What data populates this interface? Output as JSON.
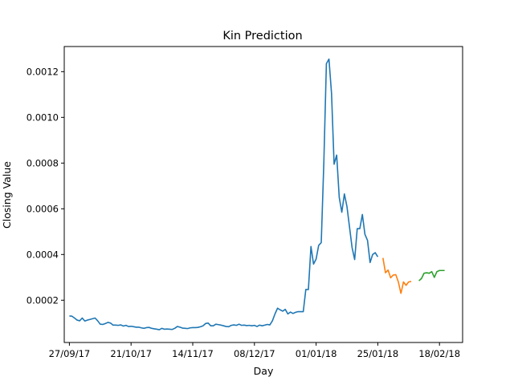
{
  "chart_data": {
    "type": "line",
    "title": "Kin Prediction",
    "xlabel": "Day",
    "ylabel": "Closing Value",
    "x_axis": {
      "unit": "date",
      "tick_dates": [
        "2017-09-27",
        "2017-10-21",
        "2017-11-14",
        "2017-12-08",
        "2018-01-01",
        "2018-01-25",
        "2018-02-18"
      ],
      "tick_labels": [
        "27/09/17",
        "21/10/17",
        "14/11/17",
        "08/12/17",
        "01/01/18",
        "25/01/18",
        "18/02/18"
      ],
      "range": [
        "2017-09-25",
        "2018-02-27"
      ]
    },
    "y_axis": {
      "ticks": [
        0.0002,
        0.0004,
        0.0006,
        0.0008,
        0.001,
        0.0012
      ],
      "tick_labels": [
        "0.0002",
        "0.0004",
        "0.0006",
        "0.0008",
        "0.0010",
        "0.0012"
      ],
      "range": [
        1.5e-05,
        0.00131
      ]
    },
    "grid": false,
    "legend": "none",
    "series": [
      {
        "color": "#1f77b4",
        "points": [
          [
            "2017-09-27",
            0.000131
          ],
          [
            "2017-09-28",
            0.00013
          ],
          [
            "2017-09-29",
            0.000122
          ],
          [
            "2017-09-30",
            0.000113
          ],
          [
            "2017-10-01",
            0.00011
          ],
          [
            "2017-10-02",
            0.000122
          ],
          [
            "2017-10-03",
            0.000109
          ],
          [
            "2017-10-04",
            0.000113
          ],
          [
            "2017-10-05",
            0.000116
          ],
          [
            "2017-10-06",
            0.000119
          ],
          [
            "2017-10-07",
            0.000122
          ],
          [
            "2017-10-08",
            0.00011
          ],
          [
            "2017-10-09",
            9.5e-05
          ],
          [
            "2017-10-10",
            9.4e-05
          ],
          [
            "2017-10-11",
            9.8e-05
          ],
          [
            "2017-10-12",
            0.000103
          ],
          [
            "2017-10-13",
            0.0001
          ],
          [
            "2017-10-14",
            9.1e-05
          ],
          [
            "2017-10-15",
            9.1e-05
          ],
          [
            "2017-10-16",
            9e-05
          ],
          [
            "2017-10-17",
            9.2e-05
          ],
          [
            "2017-10-18",
            8.7e-05
          ],
          [
            "2017-10-19",
            9e-05
          ],
          [
            "2017-10-20",
            8.5e-05
          ],
          [
            "2017-10-21",
            8.6e-05
          ],
          [
            "2017-10-22",
            8.4e-05
          ],
          [
            "2017-10-23",
            8.2e-05
          ],
          [
            "2017-10-24",
            8.2e-05
          ],
          [
            "2017-10-25",
            7.9e-05
          ],
          [
            "2017-10-26",
            7.7e-05
          ],
          [
            "2017-10-27",
            8e-05
          ],
          [
            "2017-10-28",
            8.1e-05
          ],
          [
            "2017-10-29",
            7.7e-05
          ],
          [
            "2017-10-30",
            7.5e-05
          ],
          [
            "2017-10-31",
            7.3e-05
          ],
          [
            "2017-11-01",
            7.1e-05
          ],
          [
            "2017-11-02",
            7.7e-05
          ],
          [
            "2017-11-03",
            7.3e-05
          ],
          [
            "2017-11-04",
            7.4e-05
          ],
          [
            "2017-11-05",
            7.3e-05
          ],
          [
            "2017-11-06",
            7.2e-05
          ],
          [
            "2017-11-07",
            7.7e-05
          ],
          [
            "2017-11-08",
            8.5e-05
          ],
          [
            "2017-11-09",
            8.2e-05
          ],
          [
            "2017-11-10",
            7.8e-05
          ],
          [
            "2017-11-11",
            7.7e-05
          ],
          [
            "2017-11-12",
            7.6e-05
          ],
          [
            "2017-11-13",
            7.9e-05
          ],
          [
            "2017-11-14",
            8e-05
          ],
          [
            "2017-11-15",
            8e-05
          ],
          [
            "2017-11-16",
            8.1e-05
          ],
          [
            "2017-11-17",
            8.4e-05
          ],
          [
            "2017-11-18",
            8.8e-05
          ],
          [
            "2017-11-19",
            9.8e-05
          ],
          [
            "2017-11-20",
            0.0001
          ],
          [
            "2017-11-21",
            8.8e-05
          ],
          [
            "2017-11-22",
            8.8e-05
          ],
          [
            "2017-11-23",
            9.5e-05
          ],
          [
            "2017-11-24",
            9.3e-05
          ],
          [
            "2017-11-25",
            9.1e-05
          ],
          [
            "2017-11-26",
            8.8e-05
          ],
          [
            "2017-11-27",
            8.5e-05
          ],
          [
            "2017-11-28",
            8.4e-05
          ],
          [
            "2017-11-29",
            9e-05
          ],
          [
            "2017-11-30",
            9.2e-05
          ],
          [
            "2017-12-01",
            9e-05
          ],
          [
            "2017-12-02",
            9.5e-05
          ],
          [
            "2017-12-03",
            9e-05
          ],
          [
            "2017-12-04",
            9.1e-05
          ],
          [
            "2017-12-05",
            8.9e-05
          ],
          [
            "2017-12-06",
            9e-05
          ],
          [
            "2017-12-07",
            8.8e-05
          ],
          [
            "2017-12-08",
            9e-05
          ],
          [
            "2017-12-09",
            8.5e-05
          ],
          [
            "2017-12-10",
            9.1e-05
          ],
          [
            "2017-12-11",
            8.8e-05
          ],
          [
            "2017-12-12",
            9.1e-05
          ],
          [
            "2017-12-13",
            9.4e-05
          ],
          [
            "2017-12-14",
            9.2e-05
          ],
          [
            "2017-12-15",
            0.00011
          ],
          [
            "2017-12-16",
            0.00014
          ],
          [
            "2017-12-17",
            0.000165
          ],
          [
            "2017-12-18",
            0.000158
          ],
          [
            "2017-12-19",
            0.000152
          ],
          [
            "2017-12-20",
            0.00016
          ],
          [
            "2017-12-21",
            0.00014
          ],
          [
            "2017-12-22",
            0.000148
          ],
          [
            "2017-12-23",
            0.000142
          ],
          [
            "2017-12-24",
            0.000147
          ],
          [
            "2017-12-25",
            0.00015
          ],
          [
            "2017-12-26",
            0.00015
          ],
          [
            "2017-12-27",
            0.00015
          ],
          [
            "2017-12-28",
            0.000247
          ],
          [
            "2017-12-29",
            0.000247
          ],
          [
            "2017-12-30",
            0.000435
          ],
          [
            "2017-12-31",
            0.000358
          ],
          [
            "2018-01-01",
            0.00038
          ],
          [
            "2018-01-02",
            0.00044
          ],
          [
            "2018-01-03",
            0.000452
          ],
          [
            "2018-01-04",
            0.0008
          ],
          [
            "2018-01-05",
            0.001235
          ],
          [
            "2018-01-06",
            0.001255
          ],
          [
            "2018-01-07",
            0.001105
          ],
          [
            "2018-01-08",
            0.000795
          ],
          [
            "2018-01-09",
            0.000835
          ],
          [
            "2018-01-10",
            0.00065
          ],
          [
            "2018-01-11",
            0.000585
          ],
          [
            "2018-01-12",
            0.000665
          ],
          [
            "2018-01-13",
            0.00061
          ],
          [
            "2018-01-14",
            0.00052
          ],
          [
            "2018-01-15",
            0.00043
          ],
          [
            "2018-01-16",
            0.000378
          ],
          [
            "2018-01-17",
            0.000513
          ],
          [
            "2018-01-18",
            0.000513
          ],
          [
            "2018-01-19",
            0.000575
          ],
          [
            "2018-01-20",
            0.000488
          ],
          [
            "2018-01-21",
            0.000462
          ],
          [
            "2018-01-22",
            0.000365
          ],
          [
            "2018-01-23",
            0.0004
          ],
          [
            "2018-01-24",
            0.000408
          ],
          [
            "2018-01-25",
            0.00039
          ]
        ]
      },
      {
        "color": "#ff7f0e",
        "points": [
          [
            "2018-01-27",
            0.000385
          ],
          [
            "2018-01-28",
            0.00032
          ],
          [
            "2018-01-29",
            0.000332
          ],
          [
            "2018-01-30",
            0.000298
          ],
          [
            "2018-01-31",
            0.00031
          ],
          [
            "2018-02-01",
            0.000312
          ],
          [
            "2018-02-02",
            0.00028
          ],
          [
            "2018-02-03",
            0.00023
          ],
          [
            "2018-02-04",
            0.00028
          ],
          [
            "2018-02-05",
            0.000265
          ],
          [
            "2018-02-06",
            0.00028
          ],
          [
            "2018-02-07",
            0.000282
          ]
        ]
      },
      {
        "color": "#2ca02c",
        "points": [
          [
            "2018-02-10",
            0.000285
          ],
          [
            "2018-02-11",
            0.000295
          ],
          [
            "2018-02-12",
            0.000318
          ],
          [
            "2018-02-13",
            0.00032
          ],
          [
            "2018-02-14",
            0.000318
          ],
          [
            "2018-02-15",
            0.000325
          ],
          [
            "2018-02-16",
            0.0003
          ],
          [
            "2018-02-17",
            0.000325
          ],
          [
            "2018-02-18",
            0.00033
          ],
          [
            "2018-02-19",
            0.00033
          ],
          [
            "2018-02-20",
            0.00033
          ]
        ]
      }
    ]
  }
}
